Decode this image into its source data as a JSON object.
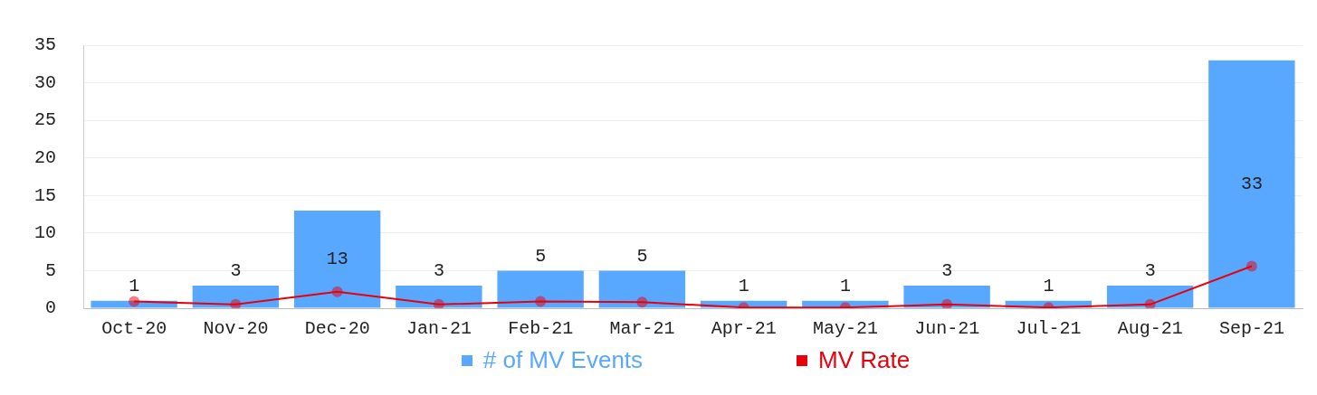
{
  "chart_data": {
    "type": "bar",
    "categories": [
      "Oct-20",
      "Nov-20",
      "Dec-20",
      "Jan-21",
      "Feb-21",
      "Mar-21",
      "Apr-21",
      "May-21",
      "Jun-21",
      "Jul-21",
      "Aug-21",
      "Sep-21"
    ],
    "series": [
      {
        "name": "# of MV Events",
        "color": "#58a8ff",
        "values": [
          1,
          3,
          13,
          3,
          5,
          5,
          1,
          1,
          3,
          1,
          3,
          33
        ],
        "value_labels": [
          "1",
          "3",
          "13",
          "3",
          "5",
          "5",
          "1",
          "1",
          "3",
          "1",
          "3",
          "33"
        ]
      },
      {
        "name": "MV Rate",
        "type": "line",
        "color": "#e8000b",
        "marker": "circle",
        "values": [
          0.9,
          0.5,
          2.2,
          0.5,
          0.9,
          0.8,
          0.1,
          0.1,
          0.5,
          0.1,
          0.5,
          5.6
        ]
      }
    ],
    "ylim": [
      0,
      35
    ],
    "yticks": [
      0,
      5,
      10,
      15,
      20,
      25,
      30,
      35
    ],
    "grid": "y",
    "legend": "bottom"
  }
}
